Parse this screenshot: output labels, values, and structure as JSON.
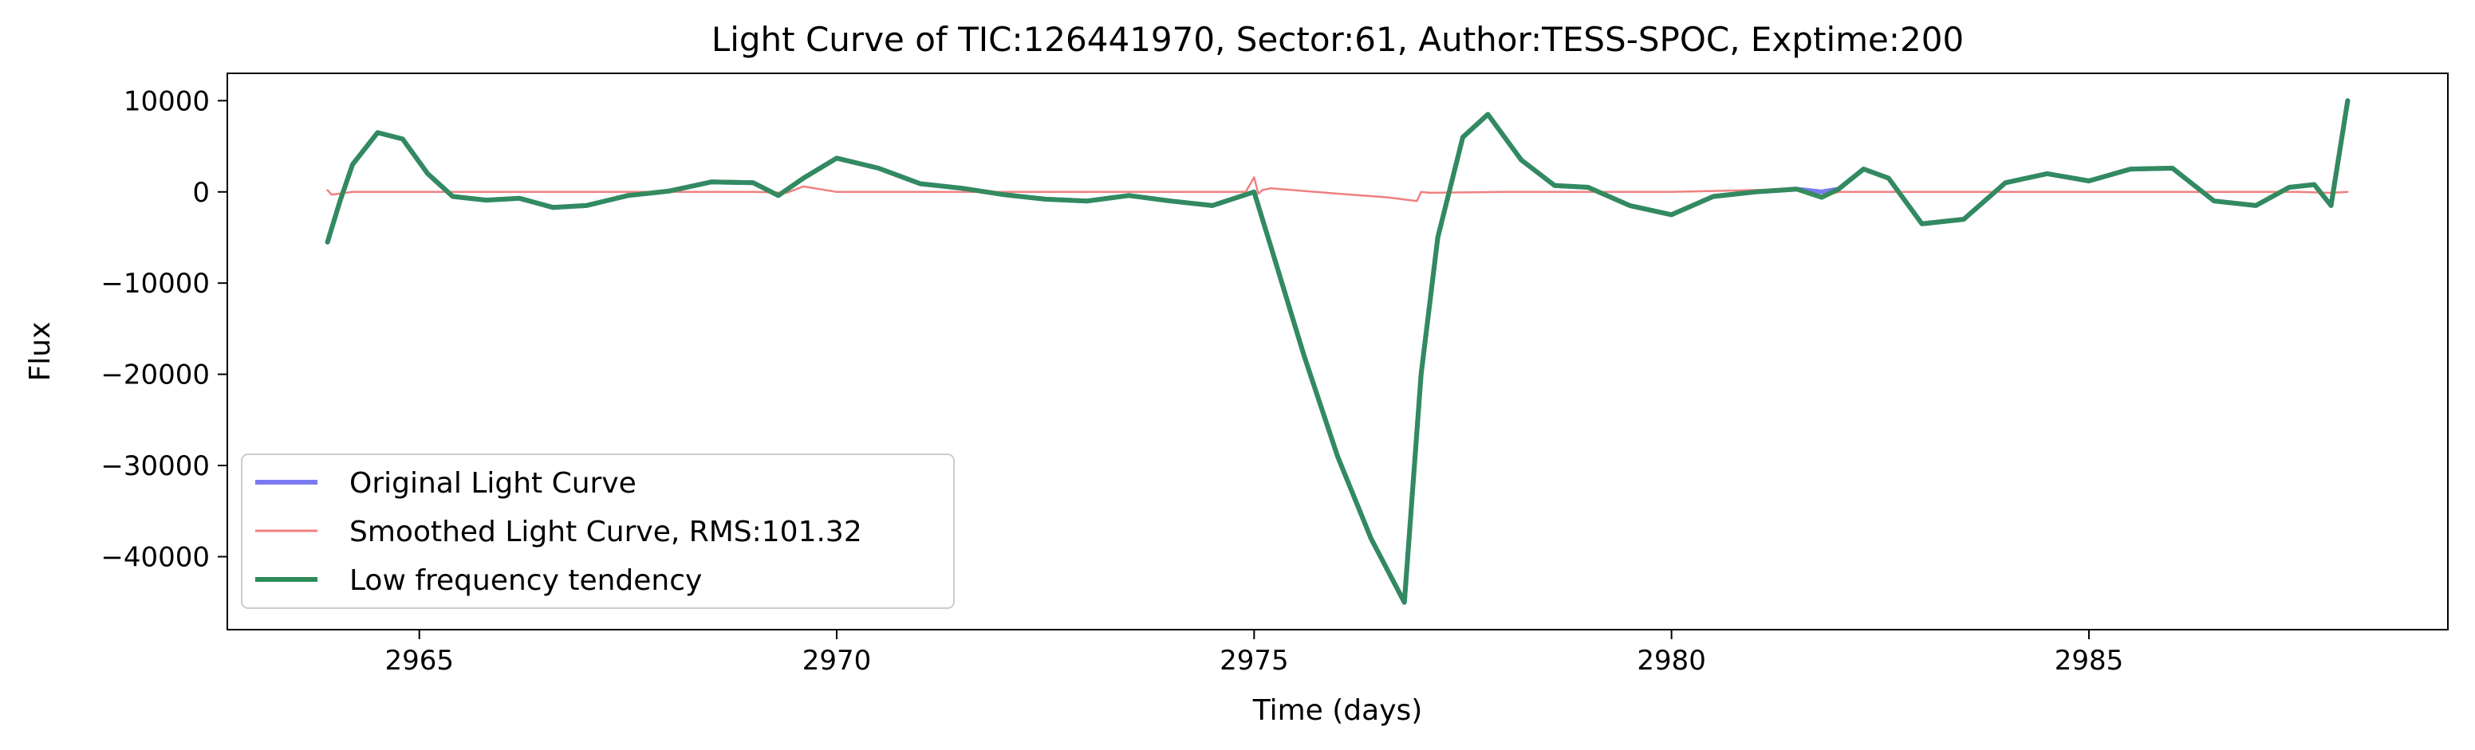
{
  "chart_data": {
    "type": "line",
    "title": "Light Curve of TIC:126441970, Sector:61, Author:TESS-SPOC, Exptime:200",
    "xlabel": "Time (days)",
    "ylabel": "Flux",
    "xlim": [
      2962.7,
      2989.3
    ],
    "ylim": [
      -48000,
      13000
    ],
    "xticks": [
      2965,
      2970,
      2975,
      2980,
      2985
    ],
    "yticks": [
      10000,
      0,
      -10000,
      -20000,
      -30000,
      -40000
    ],
    "ytick_labels": [
      "10000",
      "0",
      "−10000",
      "−20000",
      "−30000",
      "−40000"
    ],
    "grid": false,
    "legend_position": "lower-left",
    "series": [
      {
        "name": "Original Light Curve",
        "color": "#7b7bf2",
        "x": [
          2963.9,
          2964.05,
          2964.2,
          2964.5,
          2964.8,
          2965.1,
          2965.4,
          2965.8,
          2966.2,
          2966.6,
          2967.0,
          2967.5,
          2968.0,
          2968.5,
          2969.0,
          2969.3,
          2969.6,
          2970.0,
          2970.5,
          2971.0,
          2971.5,
          2972.0,
          2972.5,
          2973.0,
          2973.5,
          2974.0,
          2974.5,
          2975.0,
          2975.2,
          2975.6,
          2976.0,
          2976.4,
          2976.8,
          2977.0,
          2977.2,
          2977.5,
          2977.8,
          2978.2,
          2978.6,
          2979.0,
          2979.5,
          2980.0,
          2980.5,
          2981.0,
          2981.5,
          2981.8,
          2982.0,
          2982.3,
          2982.6,
          2983.0,
          2983.5,
          2984.0,
          2984.5,
          2985.0,
          2985.5,
          2986.0,
          2986.5,
          2987.0,
          2987.4,
          2987.7,
          2987.9,
          2988.1
        ],
        "y": [
          -5500,
          -1000,
          3000,
          6500,
          5800,
          2000,
          -500,
          -900,
          -700,
          -1700,
          -1500,
          -400,
          100,
          1100,
          1000,
          -400,
          1500,
          3700,
          2600,
          900,
          400,
          -300,
          -800,
          -1000,
          -400,
          -1000,
          -1500,
          0,
          -6000,
          -18000,
          -29000,
          -38000,
          -45000,
          -20000,
          -5000,
          6000,
          8500,
          3500,
          700,
          500,
          -1500,
          -2500,
          -500,
          0,
          300,
          0,
          300,
          2500,
          1500,
          -3500,
          -3000,
          1000,
          2000,
          1200,
          2500,
          2600,
          -1000,
          -1500,
          500,
          800,
          -1500,
          10000
        ]
      },
      {
        "name": "Smoothed Light Curve, RMS:101.32",
        "color": "#f08080",
        "x": [
          2963.9,
          2963.95,
          2964.2,
          2966.0,
          2968.0,
          2969.0,
          2969.4,
          2969.6,
          2970.0,
          2972.0,
          2974.0,
          2974.9,
          2975.0,
          2975.05,
          2975.1,
          2975.2,
          2976.0,
          2976.6,
          2976.95,
          2977.0,
          2977.1,
          2978.0,
          2980.0,
          2981.5,
          2981.8,
          2982.0,
          2984.0,
          2986.0,
          2987.5,
          2987.9,
          2988.1
        ],
        "y": [
          200,
          -300,
          0,
          0,
          0,
          0,
          -100,
          600,
          0,
          0,
          0,
          0,
          1600,
          -200,
          200,
          400,
          -200,
          -600,
          -1000,
          0,
          -100,
          0,
          0,
          300,
          -500,
          0,
          0,
          0,
          0,
          -100,
          0
        ]
      },
      {
        "name": "Low frequency tendency",
        "color": "#2e8b57",
        "x": [
          2963.9,
          2964.05,
          2964.2,
          2964.5,
          2964.8,
          2965.1,
          2965.4,
          2965.8,
          2966.2,
          2966.6,
          2967.0,
          2967.5,
          2968.0,
          2968.5,
          2969.0,
          2969.3,
          2969.6,
          2970.0,
          2970.5,
          2971.0,
          2971.5,
          2972.0,
          2972.5,
          2973.0,
          2973.5,
          2974.0,
          2974.5,
          2975.0,
          2975.2,
          2975.6,
          2976.0,
          2976.4,
          2976.8,
          2977.0,
          2977.2,
          2977.5,
          2977.8,
          2978.2,
          2978.6,
          2979.0,
          2979.5,
          2980.0,
          2980.5,
          2981.0,
          2981.5,
          2981.8,
          2982.0,
          2982.3,
          2982.6,
          2983.0,
          2983.5,
          2984.0,
          2984.5,
          2985.0,
          2985.5,
          2986.0,
          2986.5,
          2987.0,
          2987.4,
          2987.7,
          2987.9,
          2988.1
        ],
        "y": [
          -5500,
          -1000,
          3000,
          6500,
          5800,
          2000,
          -500,
          -900,
          -700,
          -1700,
          -1500,
          -400,
          100,
          1100,
          1000,
          -400,
          1500,
          3700,
          2600,
          900,
          400,
          -300,
          -800,
          -1000,
          -400,
          -1000,
          -1500,
          0,
          -6000,
          -18000,
          -29000,
          -38000,
          -45000,
          -20000,
          -5000,
          6000,
          8500,
          3500,
          700,
          500,
          -1500,
          -2500,
          -500,
          0,
          300,
          -600,
          300,
          2500,
          1500,
          -3500,
          -3000,
          1000,
          2000,
          1200,
          2500,
          2600,
          -1000,
          -1500,
          500,
          800,
          -1500,
          10000
        ]
      }
    ]
  }
}
